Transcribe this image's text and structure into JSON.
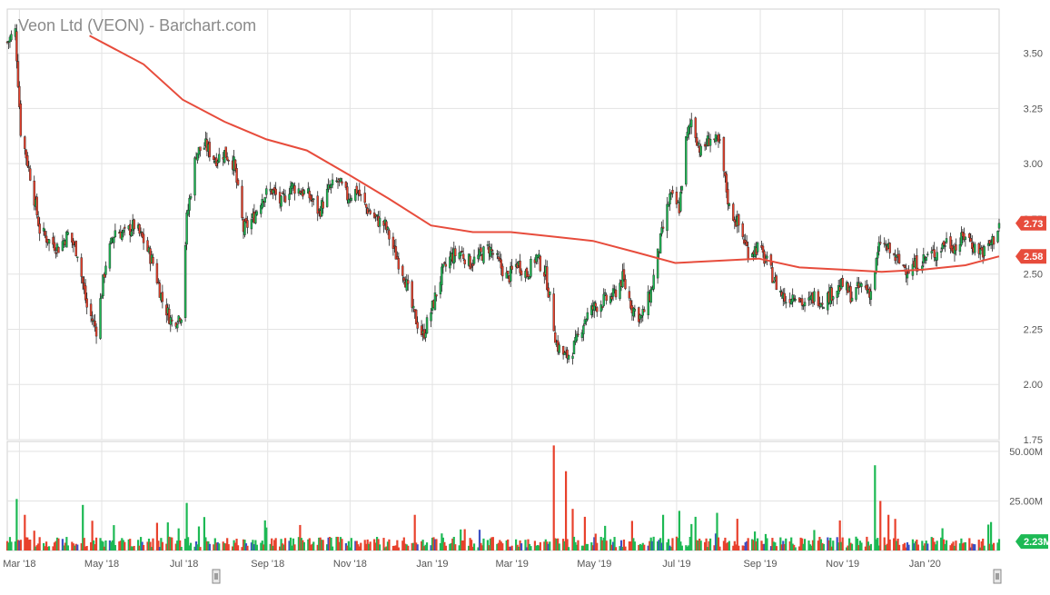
{
  "chart_data": {
    "type": "candlestick",
    "title": "Veon Ltd (VEON) - Barchart.com",
    "price_axis": {
      "ticks": [
        "3.50",
        "3.25",
        "3.00",
        "2.75",
        "2.50",
        "2.25",
        "2.00",
        "1.75"
      ],
      "tick_values": [
        3.5,
        3.25,
        3.0,
        2.75,
        2.5,
        2.25,
        2.0,
        1.75
      ],
      "ylim": [
        1.75,
        3.7
      ]
    },
    "volume_axis": {
      "ticks": [
        "50.00M",
        "25.00M"
      ],
      "tick_values": [
        50,
        25
      ],
      "ylim": [
        0,
        55
      ]
    },
    "x_axis": {
      "labels": [
        "Mar '18",
        "May '18",
        "Jul '18",
        "Sep '18",
        "Nov '18",
        "Jan '19",
        "Mar '19",
        "May '19",
        "Jul '19",
        "Sep '19",
        "Nov '19",
        "Jan '20"
      ],
      "dates": [
        "2018-03-01",
        "2018-05-01",
        "2018-07-01",
        "2018-09-01",
        "2018-11-01",
        "2019-01-01",
        "2019-03-01",
        "2019-05-01",
        "2019-07-01",
        "2019-09-01",
        "2019-11-01",
        "2020-01-01"
      ]
    },
    "date_range": [
      "2018-02-20",
      "2020-02-25"
    ],
    "price_path": [
      [
        "2018-02-20",
        3.55
      ],
      [
        "2018-02-26",
        3.6
      ],
      [
        "2018-03-02",
        3.15
      ],
      [
        "2018-03-09",
        2.95
      ],
      [
        "2018-03-16",
        2.7
      ],
      [
        "2018-03-23",
        2.65
      ],
      [
        "2018-03-30",
        2.62
      ],
      [
        "2018-04-06",
        2.68
      ],
      [
        "2018-04-13",
        2.6
      ],
      [
        "2018-04-20",
        2.35
      ],
      [
        "2018-04-27",
        2.25
      ],
      [
        "2018-05-04",
        2.55
      ],
      [
        "2018-05-11",
        2.7
      ],
      [
        "2018-05-18",
        2.68
      ],
      [
        "2018-05-25",
        2.72
      ],
      [
        "2018-06-01",
        2.65
      ],
      [
        "2018-06-08",
        2.55
      ],
      [
        "2018-06-15",
        2.38
      ],
      [
        "2018-06-22",
        2.28
      ],
      [
        "2018-06-29",
        2.32
      ],
      [
        "2018-07-03",
        2.75
      ],
      [
        "2018-07-10",
        3.05
      ],
      [
        "2018-07-17",
        3.08
      ],
      [
        "2018-07-24",
        3.02
      ],
      [
        "2018-07-31",
        3.05
      ],
      [
        "2018-08-07",
        3.0
      ],
      [
        "2018-08-14",
        2.7
      ],
      [
        "2018-08-21",
        2.75
      ],
      [
        "2018-08-28",
        2.85
      ],
      [
        "2018-09-04",
        2.88
      ],
      [
        "2018-09-11",
        2.82
      ],
      [
        "2018-09-18",
        2.9
      ],
      [
        "2018-09-25",
        2.88
      ],
      [
        "2018-10-02",
        2.85
      ],
      [
        "2018-10-09",
        2.78
      ],
      [
        "2018-10-16",
        2.88
      ],
      [
        "2018-10-23",
        2.92
      ],
      [
        "2018-10-30",
        2.85
      ],
      [
        "2018-11-06",
        2.88
      ],
      [
        "2018-11-13",
        2.8
      ],
      [
        "2018-11-20",
        2.75
      ],
      [
        "2018-11-27",
        2.72
      ],
      [
        "2018-12-04",
        2.6
      ],
      [
        "2018-12-11",
        2.5
      ],
      [
        "2018-12-18",
        2.32
      ],
      [
        "2018-12-25",
        2.22
      ],
      [
        "2019-01-01",
        2.35
      ],
      [
        "2019-01-08",
        2.5
      ],
      [
        "2019-01-15",
        2.58
      ],
      [
        "2019-01-22",
        2.6
      ],
      [
        "2019-01-29",
        2.55
      ],
      [
        "2019-02-05",
        2.58
      ],
      [
        "2019-02-12",
        2.62
      ],
      [
        "2019-02-19",
        2.55
      ],
      [
        "2019-02-26",
        2.48
      ],
      [
        "2019-03-05",
        2.55
      ],
      [
        "2019-03-12",
        2.5
      ],
      [
        "2019-03-19",
        2.58
      ],
      [
        "2019-03-26",
        2.5
      ],
      [
        "2019-03-30",
        2.35
      ],
      [
        "2019-04-03",
        2.18
      ],
      [
        "2019-04-10",
        2.12
      ],
      [
        "2019-04-17",
        2.18
      ],
      [
        "2019-04-24",
        2.3
      ],
      [
        "2019-05-01",
        2.35
      ],
      [
        "2019-05-08",
        2.38
      ],
      [
        "2019-05-15",
        2.4
      ],
      [
        "2019-05-22",
        2.48
      ],
      [
        "2019-05-29",
        2.35
      ],
      [
        "2019-06-05",
        2.3
      ],
      [
        "2019-06-12",
        2.42
      ],
      [
        "2019-06-19",
        2.65
      ],
      [
        "2019-06-26",
        2.85
      ],
      [
        "2019-07-03",
        2.8
      ],
      [
        "2019-07-08",
        3.1
      ],
      [
        "2019-07-12",
        3.2
      ],
      [
        "2019-07-19",
        3.05
      ],
      [
        "2019-07-26",
        3.12
      ],
      [
        "2019-08-02",
        3.08
      ],
      [
        "2019-08-09",
        2.8
      ],
      [
        "2019-08-16",
        2.72
      ],
      [
        "2019-08-23",
        2.6
      ],
      [
        "2019-08-30",
        2.62
      ],
      [
        "2019-09-06",
        2.55
      ],
      [
        "2019-09-13",
        2.45
      ],
      [
        "2019-09-20",
        2.38
      ],
      [
        "2019-09-27",
        2.42
      ],
      [
        "2019-10-04",
        2.35
      ],
      [
        "2019-10-11",
        2.4
      ],
      [
        "2019-10-18",
        2.38
      ],
      [
        "2019-10-25",
        2.42
      ],
      [
        "2019-11-01",
        2.45
      ],
      [
        "2019-11-08",
        2.4
      ],
      [
        "2019-11-15",
        2.45
      ],
      [
        "2019-11-22",
        2.42
      ],
      [
        "2019-11-29",
        2.65
      ],
      [
        "2019-12-06",
        2.6
      ],
      [
        "2019-12-13",
        2.55
      ],
      [
        "2019-12-20",
        2.52
      ],
      [
        "2019-12-27",
        2.55
      ],
      [
        "2020-01-03",
        2.58
      ],
      [
        "2020-01-10",
        2.6
      ],
      [
        "2020-01-17",
        2.65
      ],
      [
        "2020-01-24",
        2.62
      ],
      [
        "2020-01-31",
        2.68
      ],
      [
        "2020-02-07",
        2.62
      ],
      [
        "2020-02-14",
        2.6
      ],
      [
        "2020-02-21",
        2.66
      ],
      [
        "2020-02-25",
        2.73
      ]
    ],
    "moving_average": {
      "color": "#e74c3c",
      "points": [
        [
          "2018-04-22",
          3.58
        ],
        [
          "2018-06-01",
          3.45
        ],
        [
          "2018-06-30",
          3.29
        ],
        [
          "2018-07-31",
          3.19
        ],
        [
          "2018-08-31",
          3.11
        ],
        [
          "2018-09-30",
          3.06
        ],
        [
          "2018-10-31",
          2.95
        ],
        [
          "2018-11-30",
          2.84
        ],
        [
          "2018-12-31",
          2.72
        ],
        [
          "2019-01-31",
          2.69
        ],
        [
          "2019-02-28",
          2.69
        ],
        [
          "2019-03-31",
          2.67
        ],
        [
          "2019-04-30",
          2.65
        ],
        [
          "2019-05-31",
          2.6
        ],
        [
          "2019-06-30",
          2.55
        ],
        [
          "2019-07-31",
          2.56
        ],
        [
          "2019-08-31",
          2.57
        ],
        [
          "2019-09-30",
          2.53
        ],
        [
          "2019-10-31",
          2.52
        ],
        [
          "2019-11-30",
          2.51
        ],
        [
          "2019-12-31",
          2.52
        ],
        [
          "2020-01-31",
          2.54
        ],
        [
          "2020-02-25",
          2.58
        ]
      ]
    },
    "last_price": "2.73",
    "last_price_value": 2.73,
    "ma_value": "2.58",
    "ma_value_num": 2.58,
    "last_volume": "2.23M",
    "volume_spikes": [
      [
        "2018-02-27",
        26,
        "green"
      ],
      [
        "2018-03-05",
        18,
        "red"
      ],
      [
        "2018-04-17",
        23,
        "green"
      ],
      [
        "2018-04-24",
        15,
        "red"
      ],
      [
        "2018-07-03",
        24,
        "green"
      ],
      [
        "2018-12-19",
        18,
        "red"
      ],
      [
        "2019-04-01",
        53,
        "red"
      ],
      [
        "2019-04-10",
        40,
        "red"
      ],
      [
        "2019-04-15",
        21,
        "red"
      ],
      [
        "2019-04-24",
        17,
        "red"
      ],
      [
        "2019-06-21",
        18,
        "green"
      ],
      [
        "2019-07-03",
        20,
        "green"
      ],
      [
        "2019-07-15",
        17,
        "green"
      ],
      [
        "2019-07-31",
        19,
        "green"
      ],
      [
        "2019-08-15",
        16,
        "red"
      ],
      [
        "2019-11-25",
        43,
        "green"
      ],
      [
        "2019-11-29",
        25,
        "red"
      ],
      [
        "2019-12-05",
        18,
        "red"
      ]
    ],
    "colors": {
      "up": "#1db954",
      "down": "#e8412c",
      "neutral_volume": "#3b4fc4",
      "grid": "#e3e3e3",
      "axis_text": "#555555",
      "last_price_badge": "#e74c3c",
      "last_volume_badge": "#1db954",
      "title": "#8a8a8a"
    }
  }
}
